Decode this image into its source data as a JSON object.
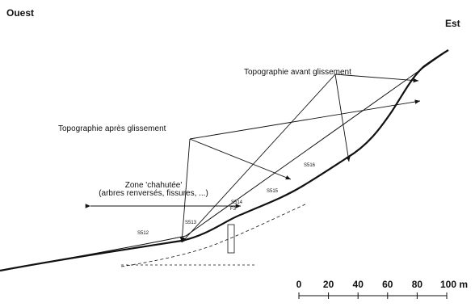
{
  "header": {
    "west": "Ouest",
    "east": "Est"
  },
  "annotations": {
    "before": "Topographie avant glissement",
    "after": "Topographie après glissement",
    "zone": {
      "title": "Zone 'chahutée'",
      "detail": "(arbres renversés, fissures, ...)"
    }
  },
  "boreholes": [
    {
      "label": "S512"
    },
    {
      "label": "S513"
    },
    {
      "label": "S514"
    },
    {
      "label": "F3"
    },
    {
      "label": "S515"
    },
    {
      "label": "S516"
    }
  ],
  "scale": {
    "labels": [
      0,
      20,
      40,
      60,
      80,
      "100 m"
    ]
  }
}
